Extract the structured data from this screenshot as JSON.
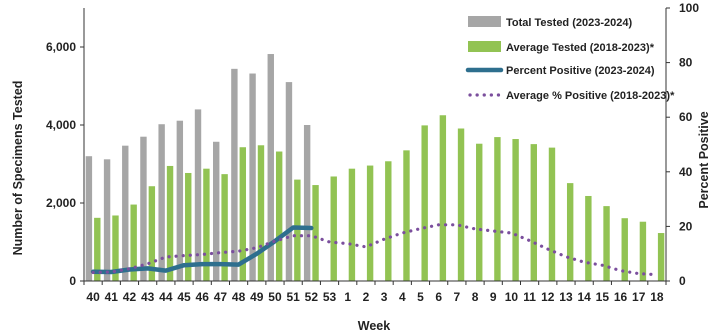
{
  "chart_data": {
    "type": "bar",
    "title": "",
    "xlabel": "Week",
    "ylabel": "Number of Specimens Tested",
    "y2label": "Percent Positive",
    "ylim": [
      0,
      7000
    ],
    "y2lim": [
      0,
      100
    ],
    "yticks": [
      0,
      2000,
      4000,
      6000
    ],
    "ytick_labels": [
      "0",
      "2,000",
      "4,000",
      "6,000"
    ],
    "y2ticks": [
      0,
      20,
      40,
      60,
      80,
      100
    ],
    "categories": [
      "40",
      "41",
      "42",
      "43",
      "44",
      "45",
      "46",
      "47",
      "48",
      "49",
      "50",
      "51",
      "52",
      "53",
      "1",
      "2",
      "3",
      "4",
      "5",
      "6",
      "7",
      "8",
      "9",
      "10",
      "11",
      "12",
      "13",
      "14",
      "15",
      "16",
      "17",
      "18"
    ],
    "legend_position": "top-right",
    "grid": false,
    "series": [
      {
        "name": "Total Tested (2023-2024)",
        "kind": "bar",
        "axis": "left",
        "color": "#a6a6a6",
        "values": [
          3200,
          3120,
          3470,
          3700,
          4020,
          4110,
          4400,
          3570,
          5440,
          5320,
          5820,
          5100,
          4000,
          null,
          null,
          null,
          null,
          null,
          null,
          null,
          null,
          null,
          null,
          null,
          null,
          null,
          null,
          null,
          null,
          null,
          null,
          null
        ]
      },
      {
        "name": "Average Tested (2018-2023)*",
        "kind": "bar",
        "axis": "left",
        "color": "#92c353",
        "values": [
          1620,
          1680,
          1960,
          2430,
          2950,
          2770,
          2880,
          2740,
          3430,
          3480,
          3320,
          2600,
          2460,
          2680,
          2880,
          2960,
          3070,
          3350,
          3990,
          4250,
          3910,
          3520,
          3690,
          3640,
          3510,
          3420,
          2510,
          2180,
          1920,
          1610,
          1520,
          1230
        ]
      },
      {
        "name": "Percent Positive (2023-2024)",
        "kind": "line",
        "axis": "right",
        "color": "#2e6f8e",
        "values": [
          3.4,
          3.3,
          4.2,
          4.6,
          3.8,
          5.8,
          6.2,
          6.2,
          6.0,
          10.0,
          14.6,
          19.6,
          19.4,
          null,
          null,
          null,
          null,
          null,
          null,
          null,
          null,
          null,
          null,
          null,
          null,
          null,
          null,
          null,
          null,
          null,
          null,
          null
        ]
      },
      {
        "name": "Average % Positive (2018-2023)*",
        "kind": "line",
        "style": "dotted",
        "axis": "right",
        "color": "#7b4f9d",
        "values": [
          3.1,
          3.3,
          4.5,
          6.3,
          8.8,
          9.3,
          9.7,
          10.4,
          10.9,
          12.2,
          14.6,
          16.6,
          16.6,
          14.3,
          13.7,
          12.5,
          15.3,
          17.6,
          19.2,
          20.6,
          20.6,
          19.1,
          18.3,
          17.6,
          14.8,
          11.7,
          8.9,
          6.9,
          5.8,
          3.8,
          2.7,
          2.3
        ]
      }
    ]
  }
}
